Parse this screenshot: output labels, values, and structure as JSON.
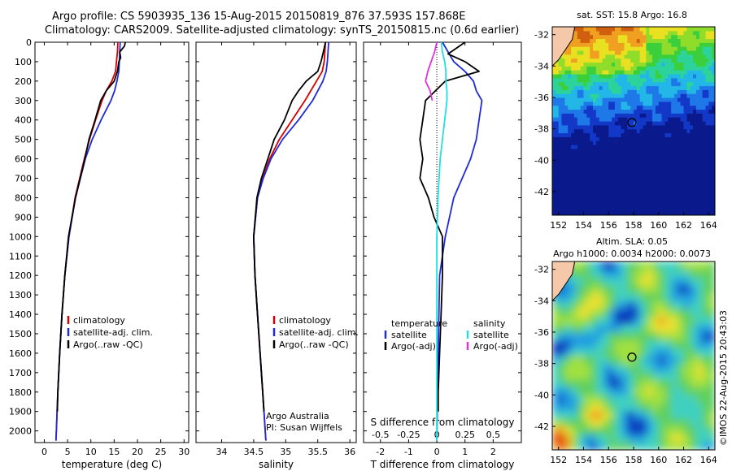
{
  "header": {
    "line1": "Argo profile: CS 5903935_136 15-Aug-2015 20150819_876 37.593S 157.868E",
    "line2": "Climatology: CARS2009. Satellite-adjusted climatology: synTS_20150815.nc (0.6d earlier)"
  },
  "footer": {
    "credit": "Argo Australia",
    "pi": "PI: Susan Wijffels",
    "stamp": "©IMOS 22-Aug-2015 20:43:03"
  },
  "colors": {
    "climatology": "#d40000",
    "satellite": "#1f2ad8",
    "argo": "#000000",
    "sal_satellite": "#22dede",
    "sal_argo": "#e030e0"
  },
  "chart_data": [
    {
      "type": "line",
      "id": "temperature",
      "xlabel": "temperature (deg C)",
      "xlim": [
        -2,
        31
      ],
      "ylim": [
        2060,
        0
      ],
      "xticks": [
        0,
        5,
        10,
        15,
        20,
        25,
        30
      ],
      "yticks": [
        0,
        100,
        200,
        300,
        400,
        500,
        600,
        700,
        800,
        900,
        1000,
        1100,
        1200,
        1300,
        1400,
        1500,
        1600,
        1700,
        1800,
        1900,
        2000
      ],
      "legend": [
        "climatology",
        "satellite-adj. clim.",
        "Argo(..raw -QC)"
      ],
      "series": [
        {
          "name": "climatology",
          "color": "#d40000",
          "depth": [
            0,
            50,
            100,
            150,
            200,
            250,
            300,
            400,
            500,
            600,
            800,
            1000,
            1200,
            1400,
            1600,
            1800,
            2000,
            2050
          ],
          "values": [
            15.8,
            15.7,
            15.5,
            15.3,
            14.5,
            13.3,
            12.4,
            11.0,
            9.7,
            8.6,
            6.6,
            5.3,
            4.4,
            3.8,
            3.3,
            2.9,
            2.6,
            2.5
          ]
        },
        {
          "name": "satellite-adj. clim.",
          "color": "#1f2ad8",
          "depth": [
            0,
            50,
            100,
            150,
            200,
            250,
            300,
            400,
            500,
            600,
            800,
            1000,
            1200,
            1400,
            1600,
            1800,
            2000,
            2050
          ],
          "values": [
            16.3,
            16.2,
            16.1,
            16.0,
            15.6,
            15.1,
            14.3,
            12.2,
            10.3,
            8.8,
            6.7,
            5.3,
            4.4,
            3.8,
            3.3,
            2.9,
            2.6,
            2.5
          ]
        },
        {
          "name": "Argo(..raw -QC)",
          "color": "#000000",
          "depth": [
            0,
            20,
            50,
            80,
            100,
            150,
            200,
            250,
            300,
            400,
            500,
            600,
            800,
            1000,
            1200,
            1400,
            1600,
            1800,
            1900
          ],
          "values": [
            17.4,
            17.2,
            16.2,
            16.4,
            16.0,
            15.7,
            15.0,
            13.3,
            12.1,
            10.9,
            9.6,
            8.7,
            6.7,
            5.2,
            4.4,
            3.8,
            3.3,
            2.9,
            2.8
          ]
        }
      ]
    },
    {
      "type": "line",
      "id": "salinity",
      "xlabel": "salinity",
      "xlim": [
        33.6,
        36.1
      ],
      "ylim": [
        2060,
        0
      ],
      "xticks": [
        34,
        34.5,
        35,
        35.5,
        36
      ],
      "xticklabels": [
        "34",
        "34.5",
        "35",
        "35.5",
        "36"
      ],
      "legend": [
        "climatology",
        "satellite-adj. clim.",
        "Argo(..raw -QC)"
      ],
      "series": [
        {
          "name": "climatology",
          "color": "#d40000",
          "depth": [
            0,
            50,
            100,
            150,
            200,
            300,
            400,
            500,
            600,
            700,
            800,
            1000,
            1200,
            1400,
            1600,
            1800,
            2000,
            2050
          ],
          "values": [
            35.62,
            35.61,
            35.6,
            35.57,
            35.48,
            35.3,
            35.1,
            34.9,
            34.75,
            34.64,
            34.56,
            34.5,
            34.52,
            34.56,
            34.6,
            34.64,
            34.68,
            34.69
          ]
        },
        {
          "name": "satellite-adj. clim.",
          "color": "#1f2ad8",
          "depth": [
            0,
            50,
            100,
            150,
            200,
            300,
            400,
            500,
            600,
            700,
            800,
            1000,
            1200,
            1400,
            1600,
            1800,
            2000,
            2050
          ],
          "values": [
            35.67,
            35.66,
            35.65,
            35.63,
            35.58,
            35.42,
            35.2,
            34.95,
            34.77,
            34.65,
            34.56,
            34.5,
            34.52,
            34.56,
            34.6,
            34.64,
            34.68,
            34.69
          ]
        },
        {
          "name": "Argo(..raw -QC)",
          "color": "#000000",
          "depth": [
            0,
            30,
            60,
            100,
            150,
            200,
            250,
            300,
            400,
            500,
            600,
            700,
            800,
            1000,
            1200,
            1400,
            1600,
            1800,
            1900
          ],
          "values": [
            35.62,
            35.6,
            35.58,
            35.55,
            35.5,
            35.32,
            35.2,
            35.1,
            34.98,
            34.82,
            34.72,
            34.62,
            34.55,
            34.5,
            34.52,
            34.56,
            34.6,
            34.64,
            34.66
          ]
        }
      ]
    },
    {
      "type": "line",
      "id": "differences",
      "xlabel": "T difference from climatology",
      "xlabel2": "S difference from climatology",
      "xlim": [
        -2.6,
        3.0
      ],
      "ylim": [
        2060,
        0
      ],
      "xticks": [
        -2,
        -1,
        0,
        1,
        2
      ],
      "sticks": [
        -0.5,
        -0.25,
        0,
        0.25,
        0.5
      ],
      "sticklabels": [
        "-0.5",
        "-0.25",
        "0",
        "0.25",
        "0.5"
      ],
      "legend_title_t": "temperature",
      "legend_title_s": "salinity",
      "legend_t": [
        "satellite",
        "Argo(-adj)"
      ],
      "legend_s": [
        "satellite",
        "Argo(-adj)"
      ],
      "series": [
        {
          "name": "satellite",
          "color": "#1f2ad8",
          "kind": "T",
          "depth": [
            0,
            50,
            100,
            150,
            200,
            250,
            300,
            400,
            500,
            600,
            800,
            1000,
            1200,
            1600,
            2050
          ],
          "values": [
            0.2,
            0.4,
            0.6,
            1.0,
            1.3,
            1.4,
            1.6,
            1.5,
            1.4,
            1.2,
            0.6,
            0.3,
            0.1,
            0.05,
            0.0
          ]
        },
        {
          "name": "Argo(-adj)",
          "color": "#000000",
          "kind": "T",
          "depth": [
            0,
            30,
            60,
            100,
            150,
            200,
            300,
            400,
            500,
            600,
            700,
            800,
            900,
            1000,
            1200,
            1400,
            1600,
            1800,
            1900
          ],
          "values": [
            1.0,
            0.7,
            0.4,
            1.0,
            1.5,
            0.3,
            -0.4,
            -0.5,
            -0.6,
            -0.5,
            -0.6,
            -0.3,
            -0.1,
            0.2,
            0.2,
            0.15,
            0.1,
            0.05,
            0.05
          ]
        },
        {
          "name": "satellite",
          "color": "#22dede",
          "kind": "S",
          "depth": [
            0,
            50,
            100,
            150,
            200,
            250,
            300,
            400,
            500,
            600,
            800,
            1000,
            1200,
            1600,
            2050
          ],
          "values": [
            0.04,
            0.05,
            0.07,
            0.08,
            0.08,
            0.09,
            0.09,
            0.07,
            0.05,
            0.03,
            0.01,
            0.0,
            0.0,
            0.0,
            0.0
          ]
        },
        {
          "name": "Argo(-adj)",
          "color": "#e030e0",
          "kind": "S",
          "depth": [
            0,
            50,
            100,
            150,
            200,
            250,
            300
          ],
          "values": [
            0.0,
            -0.02,
            -0.05,
            -0.08,
            -0.1,
            -0.06,
            -0.04
          ]
        }
      ]
    },
    {
      "type": "heatmap",
      "id": "sst-map",
      "title": "sat. SST: 15.8  Argo: 16.8",
      "xlim": [
        151.5,
        164.5
      ],
      "ylim": [
        -43.5,
        -31.5
      ],
      "xticks": [
        152,
        154,
        156,
        158,
        160,
        162,
        164
      ],
      "yticks": [
        -32,
        -34,
        -36,
        -38,
        -40,
        -42
      ],
      "marker": {
        "lon": 157.868,
        "lat": -37.593
      }
    },
    {
      "type": "heatmap",
      "id": "sla-map",
      "title": "Altim. SLA: 0.05",
      "subtitle": "Argo h1000: 0.0034 h2000: 0.0073",
      "xlim": [
        151.5,
        164.5
      ],
      "ylim": [
        -43.5,
        -31.5
      ],
      "xticks": [
        152,
        154,
        156,
        158,
        160,
        162,
        164
      ],
      "yticks": [
        -32,
        -34,
        -36,
        -38,
        -40,
        -42
      ],
      "marker": {
        "lon": 157.868,
        "lat": -37.593
      }
    }
  ]
}
